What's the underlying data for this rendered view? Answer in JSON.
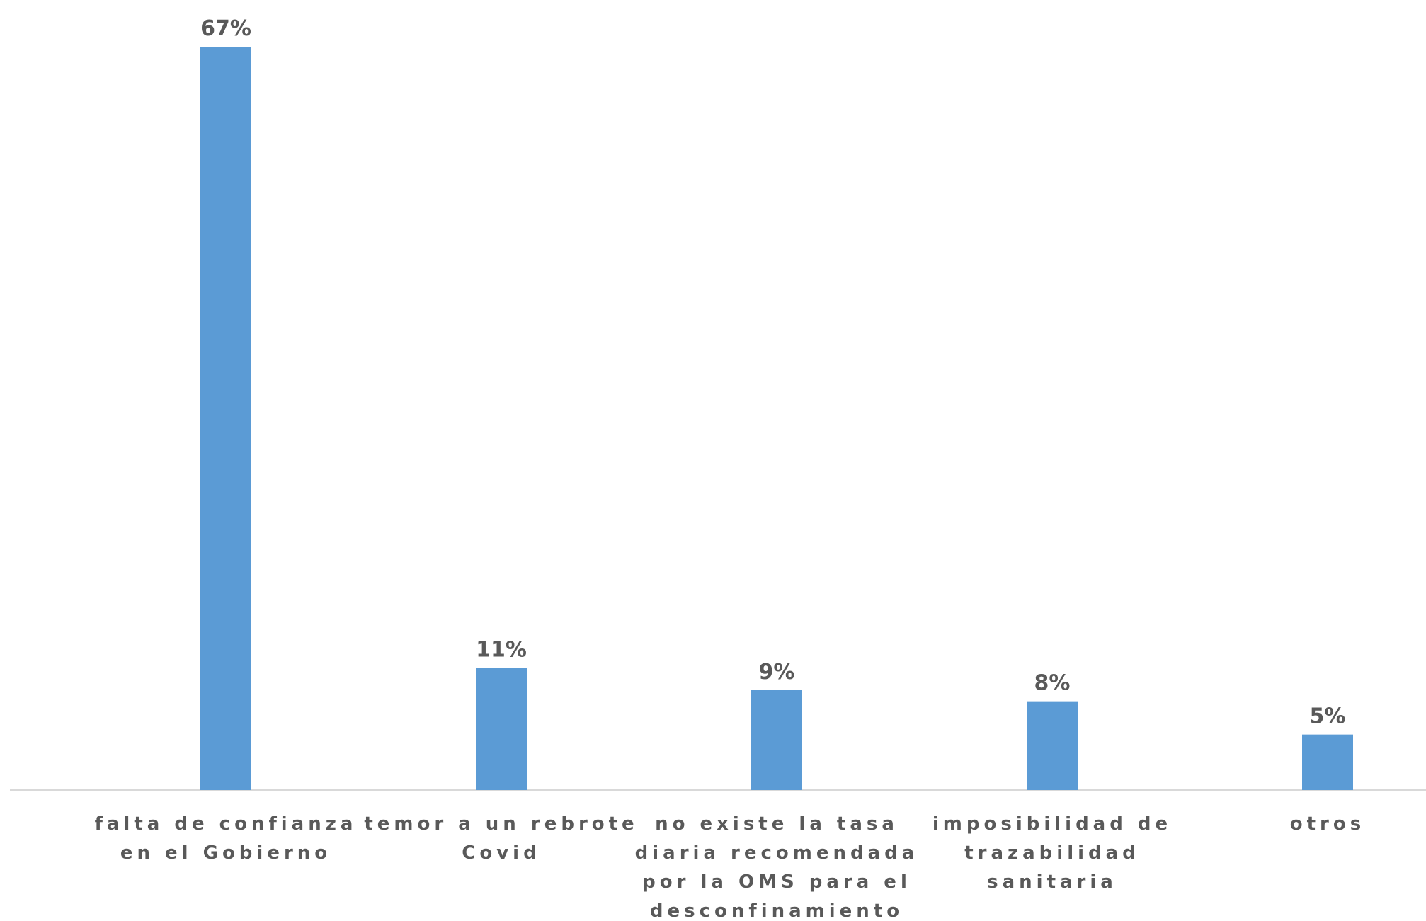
{
  "colors": {
    "bar": "#5b9bd5",
    "axis": "#d9d9d9",
    "text": "#595959"
  },
  "chart_data": {
    "type": "bar",
    "categories": [
      [
        "falta de confianza",
        "en el Gobierno"
      ],
      [
        "temor a un rebrote",
        "Covid"
      ],
      [
        "no existe la tasa",
        "diaria recomendada",
        "por la OMS para el",
        "desconfinamiento"
      ],
      [
        "imposibilidad de",
        "trazabilidad",
        "sanitaria"
      ],
      [
        "otros"
      ]
    ],
    "values": [
      67,
      11,
      9,
      8,
      5
    ],
    "data_labels": [
      "67%",
      "11%",
      "9%",
      "8%",
      "5%"
    ],
    "ylim": [
      0,
      67
    ],
    "grid": false,
    "legend": "none"
  }
}
